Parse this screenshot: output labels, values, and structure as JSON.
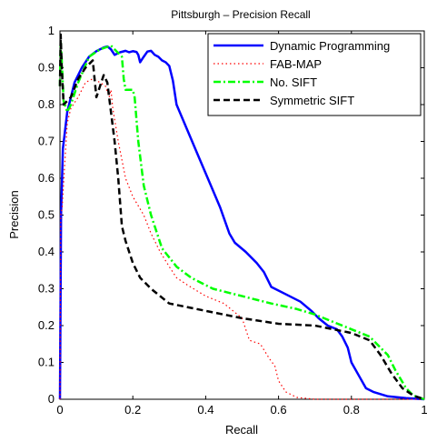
{
  "chart_data": {
    "type": "line",
    "title": "Pittsburgh – Precision Recall",
    "xlabel": "Recall",
    "ylabel": "Precision",
    "xlim": [
      0,
      1
    ],
    "ylim": [
      0,
      1
    ],
    "xticks": [
      0,
      0.2,
      0.4,
      0.6,
      0.8,
      1
    ],
    "yticks": [
      0,
      0.1,
      0.2,
      0.3,
      0.4,
      0.5,
      0.6,
      0.7,
      0.8,
      0.9,
      1
    ],
    "xtick_labels": [
      "0",
      "0.2",
      "0.4",
      "0.6",
      "0.8",
      "1"
    ],
    "ytick_labels": [
      "0",
      "0.1",
      "0.2",
      "0.3",
      "0.4",
      "0.5",
      "0.6",
      "0.7",
      "0.8",
      "0.9",
      "1"
    ],
    "grid": false,
    "legend": "top-right",
    "series": [
      {
        "name": "Dynamic Programming",
        "color": "#0000ff",
        "dash": "solid",
        "points": [
          [
            0.0,
            0.0
          ],
          [
            0.003,
            0.5
          ],
          [
            0.008,
            0.68
          ],
          [
            0.02,
            0.78
          ],
          [
            0.04,
            0.86
          ],
          [
            0.06,
            0.9
          ],
          [
            0.08,
            0.93
          ],
          [
            0.1,
            0.945
          ],
          [
            0.12,
            0.955
          ],
          [
            0.13,
            0.958
          ],
          [
            0.14,
            0.95
          ],
          [
            0.15,
            0.935
          ],
          [
            0.165,
            0.942
          ],
          [
            0.18,
            0.946
          ],
          [
            0.19,
            0.942
          ],
          [
            0.2,
            0.945
          ],
          [
            0.21,
            0.943
          ],
          [
            0.215,
            0.935
          ],
          [
            0.22,
            0.915
          ],
          [
            0.23,
            0.93
          ],
          [
            0.24,
            0.944
          ],
          [
            0.25,
            0.946
          ],
          [
            0.26,
            0.935
          ],
          [
            0.27,
            0.93
          ],
          [
            0.28,
            0.92
          ],
          [
            0.29,
            0.915
          ],
          [
            0.3,
            0.905
          ],
          [
            0.305,
            0.885
          ],
          [
            0.31,
            0.865
          ],
          [
            0.32,
            0.8
          ],
          [
            0.35,
            0.73
          ],
          [
            0.38,
            0.66
          ],
          [
            0.41,
            0.59
          ],
          [
            0.44,
            0.52
          ],
          [
            0.465,
            0.45
          ],
          [
            0.48,
            0.425
          ],
          [
            0.51,
            0.4
          ],
          [
            0.54,
            0.37
          ],
          [
            0.56,
            0.345
          ],
          [
            0.58,
            0.305
          ],
          [
            0.62,
            0.285
          ],
          [
            0.66,
            0.265
          ],
          [
            0.69,
            0.24
          ],
          [
            0.71,
            0.22
          ],
          [
            0.735,
            0.2
          ],
          [
            0.76,
            0.19
          ],
          [
            0.775,
            0.17
          ],
          [
            0.79,
            0.14
          ],
          [
            0.8,
            0.1
          ],
          [
            0.82,
            0.065
          ],
          [
            0.84,
            0.03
          ],
          [
            0.86,
            0.02
          ],
          [
            0.9,
            0.008
          ],
          [
            0.95,
            0.003
          ],
          [
            1.0,
            0.0
          ]
        ]
      },
      {
        "name": "FAB-MAP",
        "color": "#ff0000",
        "dash": "dot",
        "points": [
          [
            0.0,
            0.0
          ],
          [
            0.002,
            0.5
          ],
          [
            0.006,
            0.52
          ],
          [
            0.012,
            0.62
          ],
          [
            0.02,
            0.75
          ],
          [
            0.03,
            0.79
          ],
          [
            0.05,
            0.82
          ],
          [
            0.07,
            0.86
          ],
          [
            0.09,
            0.87
          ],
          [
            0.11,
            0.86
          ],
          [
            0.125,
            0.85
          ],
          [
            0.135,
            0.82
          ],
          [
            0.14,
            0.84
          ],
          [
            0.145,
            0.79
          ],
          [
            0.16,
            0.7
          ],
          [
            0.18,
            0.6
          ],
          [
            0.2,
            0.55
          ],
          [
            0.23,
            0.5
          ],
          [
            0.25,
            0.45
          ],
          [
            0.275,
            0.4
          ],
          [
            0.3,
            0.36
          ],
          [
            0.32,
            0.33
          ],
          [
            0.35,
            0.31
          ],
          [
            0.4,
            0.28
          ],
          [
            0.45,
            0.26
          ],
          [
            0.5,
            0.22
          ],
          [
            0.52,
            0.16
          ],
          [
            0.55,
            0.15
          ],
          [
            0.575,
            0.11
          ],
          [
            0.59,
            0.09
          ],
          [
            0.6,
            0.05
          ],
          [
            0.62,
            0.02
          ],
          [
            0.65,
            0.005
          ],
          [
            0.7,
            0.0
          ],
          [
            1.0,
            0.0
          ]
        ]
      },
      {
        "name": "No. SIFT",
        "color": "#00ff00",
        "dash": "dashdot",
        "points": [
          [
            0.0,
            0.85
          ],
          [
            0.002,
            0.97
          ],
          [
            0.004,
            0.94
          ],
          [
            0.01,
            0.81
          ],
          [
            0.02,
            0.78
          ],
          [
            0.03,
            0.8
          ],
          [
            0.05,
            0.86
          ],
          [
            0.08,
            0.93
          ],
          [
            0.11,
            0.95
          ],
          [
            0.14,
            0.96
          ],
          [
            0.17,
            0.93
          ],
          [
            0.175,
            0.87
          ],
          [
            0.18,
            0.84
          ],
          [
            0.2,
            0.84
          ],
          [
            0.205,
            0.82
          ],
          [
            0.215,
            0.7
          ],
          [
            0.23,
            0.58
          ],
          [
            0.25,
            0.5
          ],
          [
            0.28,
            0.41
          ],
          [
            0.32,
            0.36
          ],
          [
            0.36,
            0.33
          ],
          [
            0.42,
            0.3
          ],
          [
            0.5,
            0.28
          ],
          [
            0.58,
            0.26
          ],
          [
            0.65,
            0.245
          ],
          [
            0.7,
            0.23
          ],
          [
            0.75,
            0.21
          ],
          [
            0.8,
            0.19
          ],
          [
            0.85,
            0.17
          ],
          [
            0.9,
            0.12
          ],
          [
            0.92,
            0.08
          ],
          [
            0.95,
            0.03
          ],
          [
            0.97,
            0.01
          ],
          [
            1.0,
            0.0
          ]
        ]
      },
      {
        "name": "Symmetric SIFT",
        "color": "#000000",
        "dash": "dash",
        "points": [
          [
            0.0,
            0.85
          ],
          [
            0.002,
            0.99
          ],
          [
            0.005,
            0.9
          ],
          [
            0.01,
            0.8
          ],
          [
            0.03,
            0.82
          ],
          [
            0.05,
            0.87
          ],
          [
            0.07,
            0.9
          ],
          [
            0.09,
            0.92
          ],
          [
            0.1,
            0.82
          ],
          [
            0.11,
            0.85
          ],
          [
            0.12,
            0.88
          ],
          [
            0.13,
            0.86
          ],
          [
            0.14,
            0.78
          ],
          [
            0.15,
            0.7
          ],
          [
            0.16,
            0.6
          ],
          [
            0.17,
            0.47
          ],
          [
            0.18,
            0.43
          ],
          [
            0.2,
            0.37
          ],
          [
            0.22,
            0.33
          ],
          [
            0.25,
            0.3
          ],
          [
            0.3,
            0.26
          ],
          [
            0.35,
            0.25
          ],
          [
            0.4,
            0.24
          ],
          [
            0.5,
            0.22
          ],
          [
            0.6,
            0.205
          ],
          [
            0.7,
            0.2
          ],
          [
            0.75,
            0.19
          ],
          [
            0.8,
            0.18
          ],
          [
            0.85,
            0.16
          ],
          [
            0.88,
            0.12
          ],
          [
            0.91,
            0.07
          ],
          [
            0.94,
            0.03
          ],
          [
            0.97,
            0.01
          ],
          [
            1.0,
            0.0
          ]
        ]
      }
    ]
  }
}
